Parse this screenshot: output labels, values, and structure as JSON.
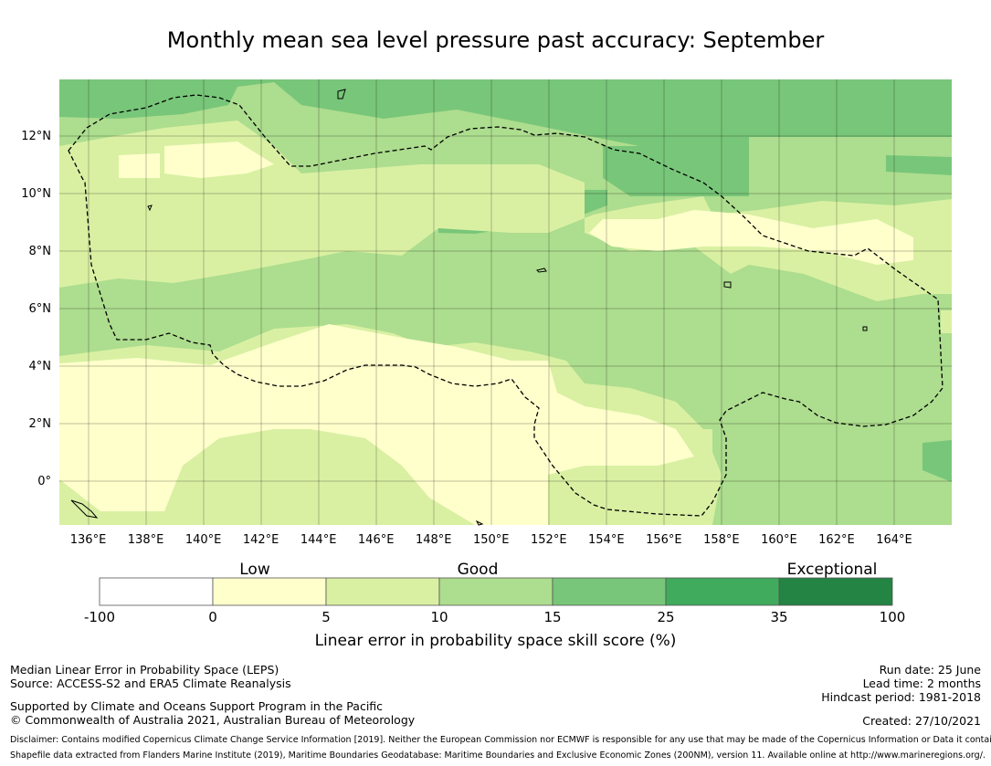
{
  "title": "Monthly mean sea level pressure past accuracy: September",
  "map": {
    "lon_range": [
      135,
      166
    ],
    "lat_range": [
      -1.5,
      14
    ],
    "x_ticks": [
      "136°E",
      "138°E",
      "140°E",
      "142°E",
      "144°E",
      "146°E",
      "148°E",
      "150°E",
      "152°E",
      "154°E",
      "156°E",
      "158°E",
      "160°E",
      "162°E",
      "164°E"
    ],
    "y_ticks": [
      "12°N",
      "10°N",
      "8°N",
      "6°N",
      "4°N",
      "2°N",
      "0°"
    ],
    "x_tick_values": [
      136,
      138,
      140,
      142,
      144,
      146,
      148,
      150,
      152,
      154,
      156,
      158,
      160,
      162,
      164
    ],
    "y_tick_values": [
      12,
      10,
      8,
      6,
      4,
      2,
      0
    ],
    "gridlines": true,
    "boundary": "dashed"
  },
  "colorbar": {
    "categories": {
      "low": "Low",
      "good": "Good",
      "exceptional": "Exceptional"
    },
    "ticks": [
      "-100",
      "0",
      "5",
      "10",
      "15",
      "25",
      "35",
      "100"
    ],
    "colors": [
      "#ffffff",
      "#ffffcc",
      "#d9f0a3",
      "#addd8e",
      "#78c679",
      "#41ab5d",
      "#238443"
    ],
    "label": "Linear error in probability space skill score (%)"
  },
  "footer": {
    "left": {
      "line1": "Median Linear Error in Probability Space (LEPS)",
      "line2": "Source: ACCESS-S2 and ERA5 Climate Reanalysis",
      "line3": "Supported by Climate and Oceans Support Program in the Pacific",
      "line4": "© Commonwealth of Australia 2021, Australian Bureau of Meteorology"
    },
    "right": {
      "run_date": "Run date: 25 June",
      "lead_time": "Lead time: 2 months",
      "hindcast": "Hindcast period: 1981-2018",
      "created": "Created: 27/10/2021"
    },
    "disclaimer1": "Disclaimer: Contains modified Copernicus Climate Change Service Information [2019]. Neither the European Commission nor ECMWF is responsible for any use that may be made of the Copernicus Information or Data it contains.",
    "disclaimer2": "Shapefile data extracted from Flanders Marine Institute (2019), Maritime Boundaries Geodatabase: Maritime Boundaries and Exclusive Economic Zones (200NM), version 11. Available online at http://www.marineregions.org/."
  }
}
